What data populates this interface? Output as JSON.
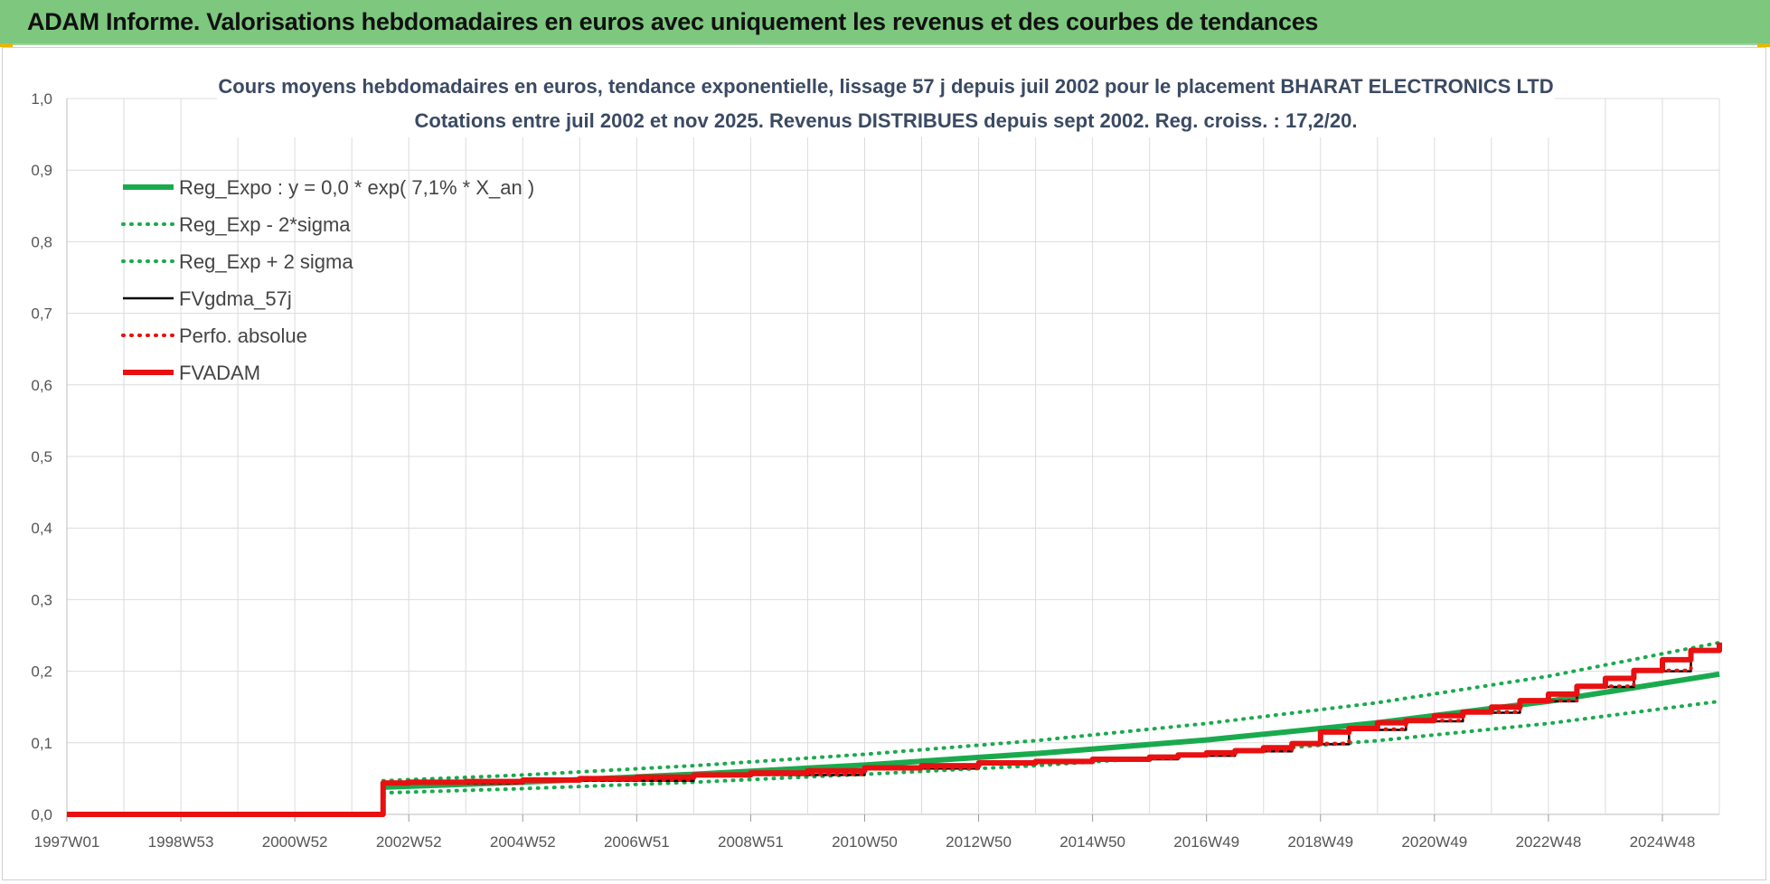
{
  "header": {
    "title": "ADAM Informe. Valorisations hebdomadaires en euros avec uniquement les revenus et des courbes de tendances"
  },
  "colors": {
    "banner": "#7dc77e",
    "green": "#1aaa4e",
    "red": "#e81010",
    "black": "#000000",
    "grid": "#dcdcdc"
  },
  "chart_data": {
    "type": "line",
    "title": [
      "Cours moyens hebdomadaires en euros, tendance exponentielle, lissage 57 j depuis juil 2002 pour le placement BHARAT ELECTRONICS LTD",
      "Cotations entre juil 2002 et nov 2025. Revenus DISTRIBUES depuis sept 2002. Reg. croiss. : 17,2/20."
    ],
    "xlim": [
      1997.0,
      2026.0
    ],
    "ylim": [
      0,
      1.0
    ],
    "grid": true,
    "legend_position": "top-left",
    "yticks": [
      "0,0",
      "0,1",
      "0,2",
      "0,3",
      "0,4",
      "0,5",
      "0,6",
      "0,7",
      "0,8",
      "0,9",
      "1,0"
    ],
    "xticks": [
      {
        "label": "1997W01",
        "x": 1997.0
      },
      {
        "label": "1998W53",
        "x": 1999.0
      },
      {
        "label": "2000W52",
        "x": 2001.0
      },
      {
        "label": "2002W52",
        "x": 2003.0
      },
      {
        "label": "2004W52",
        "x": 2005.0
      },
      {
        "label": "2006W51",
        "x": 2007.0
      },
      {
        "label": "2008W51",
        "x": 2009.0
      },
      {
        "label": "2010W50",
        "x": 2011.0
      },
      {
        "label": "2012W50",
        "x": 2013.0
      },
      {
        "label": "2014W50",
        "x": 2015.0
      },
      {
        "label": "2016W49",
        "x": 2017.0
      },
      {
        "label": "2018W49",
        "x": 2019.0
      },
      {
        "label": "2020W49",
        "x": 2021.0
      },
      {
        "label": "2022W48",
        "x": 2023.0
      },
      {
        "label": "2024W48",
        "x": 2025.0
      }
    ],
    "series": [
      {
        "name": "Reg_Expo : y = 0,0 * exp( 7,1% *  X_an )",
        "style": "solid-thick",
        "color": "#1aaa4e",
        "x": [
          2002.55,
          2005,
          2008,
          2011,
          2014,
          2017,
          2020,
          2023,
          2026
        ],
        "y": [
          0.038,
          0.045,
          0.056,
          0.069,
          0.085,
          0.104,
          0.128,
          0.158,
          0.196
        ]
      },
      {
        "name": "Reg_Exp - 2*sigma",
        "style": "dotted",
        "color": "#1aaa4e",
        "x": [
          2002.55,
          2005,
          2008,
          2011,
          2014,
          2017,
          2020,
          2023,
          2026
        ],
        "y": [
          0.03,
          0.036,
          0.045,
          0.056,
          0.068,
          0.084,
          0.103,
          0.127,
          0.158
        ]
      },
      {
        "name": "Reg_Exp + 2 sigma",
        "style": "dotted",
        "color": "#1aaa4e",
        "x": [
          2002.55,
          2005,
          2008,
          2011,
          2014,
          2017,
          2020,
          2023,
          2026
        ],
        "y": [
          0.047,
          0.055,
          0.068,
          0.084,
          0.103,
          0.127,
          0.156,
          0.193,
          0.24
        ]
      },
      {
        "name": "FVgdma_57j",
        "style": "solid",
        "color": "#000000",
        "x": [
          2002.5,
          2002.55,
          2005,
          2008,
          2011,
          2013,
          2015,
          2016.5,
          2017.5,
          2018.5,
          2019.5,
          2020.5,
          2021.5,
          2022.5,
          2023.5,
          2024.5,
          2025.5,
          2026
        ],
        "y": [
          0.0,
          0.043,
          0.047,
          0.055,
          0.064,
          0.072,
          0.077,
          0.082,
          0.088,
          0.098,
          0.118,
          0.13,
          0.142,
          0.158,
          0.178,
          0.2,
          0.228,
          0.24
        ]
      },
      {
        "name": "Perfo. absolue",
        "style": "dotted",
        "color": "#e81010",
        "x": [
          2002.5,
          2002.55,
          2005,
          2008,
          2011,
          2013,
          2015,
          2016.5,
          2017.5,
          2018.5,
          2019.5,
          2020.5,
          2021.5,
          2022.5,
          2023.5,
          2024.5,
          2025.5,
          2026
        ],
        "y": [
          0.0,
          0.044,
          0.048,
          0.056,
          0.065,
          0.073,
          0.078,
          0.083,
          0.089,
          0.099,
          0.119,
          0.131,
          0.143,
          0.159,
          0.179,
          0.201,
          0.229,
          0.241
        ]
      },
      {
        "name": "FVADAM",
        "style": "solid-thick",
        "color": "#e81010",
        "x": [
          1997.0,
          2002.5,
          2002.55,
          2003,
          2004,
          2005,
          2006,
          2007,
          2008,
          2009,
          2010,
          2011,
          2012,
          2013,
          2014,
          2015,
          2016,
          2016.5,
          2017,
          2017.5,
          2018,
          2018.5,
          2019,
          2019.5,
          2020,
          2020.5,
          2021,
          2021.5,
          2022,
          2022.5,
          2023,
          2023.5,
          2024,
          2024.5,
          2025,
          2025.5,
          2026
        ],
        "y": [
          0.0,
          0.0,
          0.044,
          0.045,
          0.046,
          0.048,
          0.05,
          0.052,
          0.055,
          0.058,
          0.061,
          0.065,
          0.068,
          0.072,
          0.074,
          0.077,
          0.08,
          0.083,
          0.086,
          0.089,
          0.093,
          0.099,
          0.115,
          0.12,
          0.128,
          0.131,
          0.138,
          0.143,
          0.15,
          0.159,
          0.168,
          0.179,
          0.19,
          0.201,
          0.216,
          0.229,
          0.24
        ]
      }
    ]
  }
}
